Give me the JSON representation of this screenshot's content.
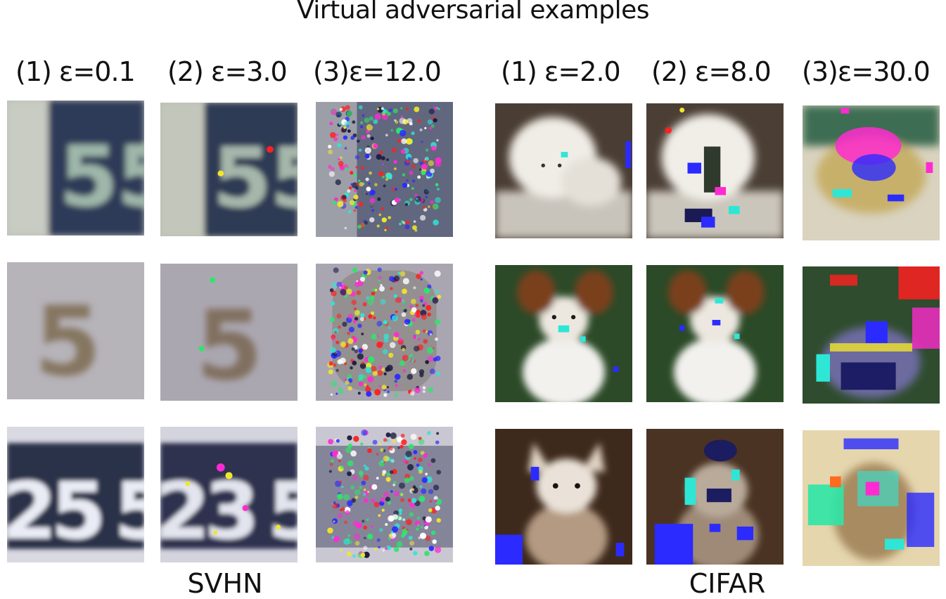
{
  "title": "Virtual adversarial examples",
  "svhn": {
    "label": "SVHN",
    "columns": [
      "(1) ε=0.1",
      "(2) ε=3.0",
      "(3)ε=12.0"
    ]
  },
  "cifar": {
    "label": "CIFAR",
    "columns": [
      "(1) ε=2.0",
      "(2) ε=8.0",
      "(3)ε=30.0"
    ]
  },
  "digits": {
    "row1": "5",
    "row2": "5",
    "row3": "25"
  },
  "colors": {
    "svhn_dark": "#2a3550",
    "svhn_light": "#c9cfc8",
    "grass": "#2f4a2a",
    "fur_white": "#f2efe8",
    "fur_brown": "#7a3f1e",
    "perturb_blue": "#2b2bff",
    "perturb_cyan": "#2ee6d6",
    "perturb_magenta": "#ff2bd0",
    "perturb_red": "#ff2020",
    "perturb_yellow": "#f2e62a"
  }
}
